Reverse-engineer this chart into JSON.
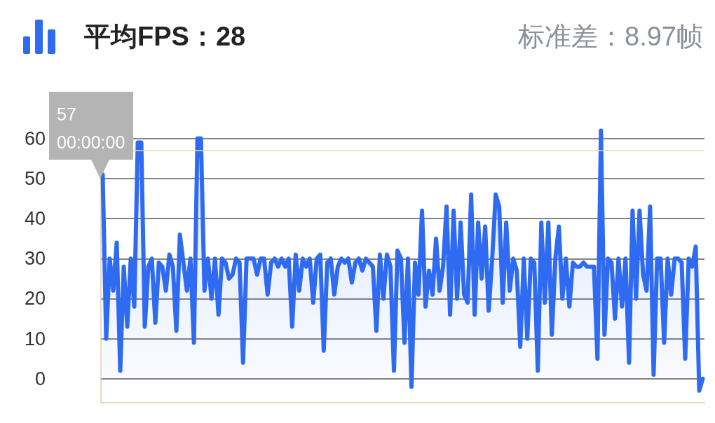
{
  "chart_data": {
    "type": "area",
    "title": "平均FPS：28",
    "subtitle": "标准差：8.97帧",
    "annotations": [
      "57\n00:00:00"
    ],
    "categories": [
      null,
      null,
      null,
      null,
      null,
      null,
      null,
      null,
      null,
      null,
      null,
      null,
      null,
      null,
      null,
      null,
      null,
      null,
      null,
      null,
      null,
      null,
      null,
      null,
      null,
      null,
      null,
      null,
      null,
      null,
      null,
      null,
      null,
      null,
      null,
      null,
      null,
      null,
      null,
      null,
      null,
      null,
      null,
      null,
      null,
      null,
      null,
      null,
      null,
      null,
      null,
      null,
      null,
      null,
      null,
      null,
      null,
      null,
      null,
      null,
      null,
      null,
      null,
      null,
      null,
      null,
      null,
      null,
      null,
      null,
      null,
      null,
      null,
      null,
      null,
      null,
      null,
      null,
      null,
      null,
      null,
      null,
      null,
      null,
      null,
      null,
      null,
      null,
      null,
      null,
      null,
      null,
      null,
      null,
      null,
      null,
      null,
      null,
      null,
      null,
      null,
      null,
      null,
      null,
      null,
      null,
      null,
      null,
      null,
      null,
      null,
      null,
      null,
      null,
      null,
      null,
      null,
      null,
      null,
      null,
      null,
      null,
      null,
      null,
      null,
      null,
      null,
      null,
      null,
      null,
      null,
      null,
      null,
      null,
      null,
      null,
      null,
      null,
      null,
      null,
      null,
      null,
      null,
      null,
      null,
      null,
      null,
      null,
      null,
      null,
      null,
      null,
      null,
      null,
      null,
      null,
      null,
      null,
      null,
      null,
      null,
      null,
      null,
      null,
      null,
      null,
      null,
      null,
      null,
      null,
      null,
      null
    ],
    "series": [
      {
        "color": "#2f6bf0",
        "values": [
          51,
          10,
          30,
          22,
          34,
          2,
          28,
          13,
          30,
          18,
          59,
          59,
          13,
          28,
          30,
          14,
          29,
          28,
          22,
          31,
          28,
          12,
          36,
          29,
          22,
          30,
          9,
          60,
          60,
          22,
          30,
          20,
          30,
          16,
          30,
          29,
          25,
          26,
          30,
          29,
          4,
          30,
          30,
          30,
          26,
          30,
          30,
          21,
          29,
          30,
          28,
          30,
          28,
          30,
          13,
          31,
          22,
          30,
          28,
          30,
          19,
          30,
          31,
          7,
          29,
          30,
          21,
          28,
          30,
          29,
          30,
          24,
          29,
          30,
          27,
          30,
          29,
          28,
          12,
          31,
          20,
          31,
          28,
          2,
          32,
          30,
          9,
          30,
          -2,
          29,
          21,
          42,
          18,
          27,
          21,
          35,
          22,
          28,
          43,
          16,
          42,
          20,
          39,
          21,
          19,
          46,
          16,
          39,
          25,
          38,
          17,
          30,
          46,
          43,
          19,
          39,
          22,
          30,
          27,
          8,
          30,
          10,
          30,
          29,
          2,
          39,
          19,
          39,
          11,
          30,
          38,
          20,
          30,
          18,
          29,
          28,
          28,
          29,
          28,
          28,
          28,
          5,
          62,
          11,
          30,
          29,
          15,
          30,
          18,
          30,
          4,
          42,
          20,
          42,
          26,
          22,
          43,
          1,
          30,
          30,
          9,
          30,
          21,
          30,
          30,
          29,
          5,
          30,
          28,
          33,
          -3,
          0
        ]
      }
    ],
    "ylim": [
      -6,
      64
    ],
    "yticks": [
      0,
      10,
      20,
      30,
      40,
      50,
      60
    ],
    "grid": "y",
    "tick_labels": "y",
    "marker": "none",
    "line_style": "solid",
    "ref_lines": [
      {
        "axis": "y",
        "value": 57,
        "color": "#f3d8b6"
      }
    ]
  }
}
